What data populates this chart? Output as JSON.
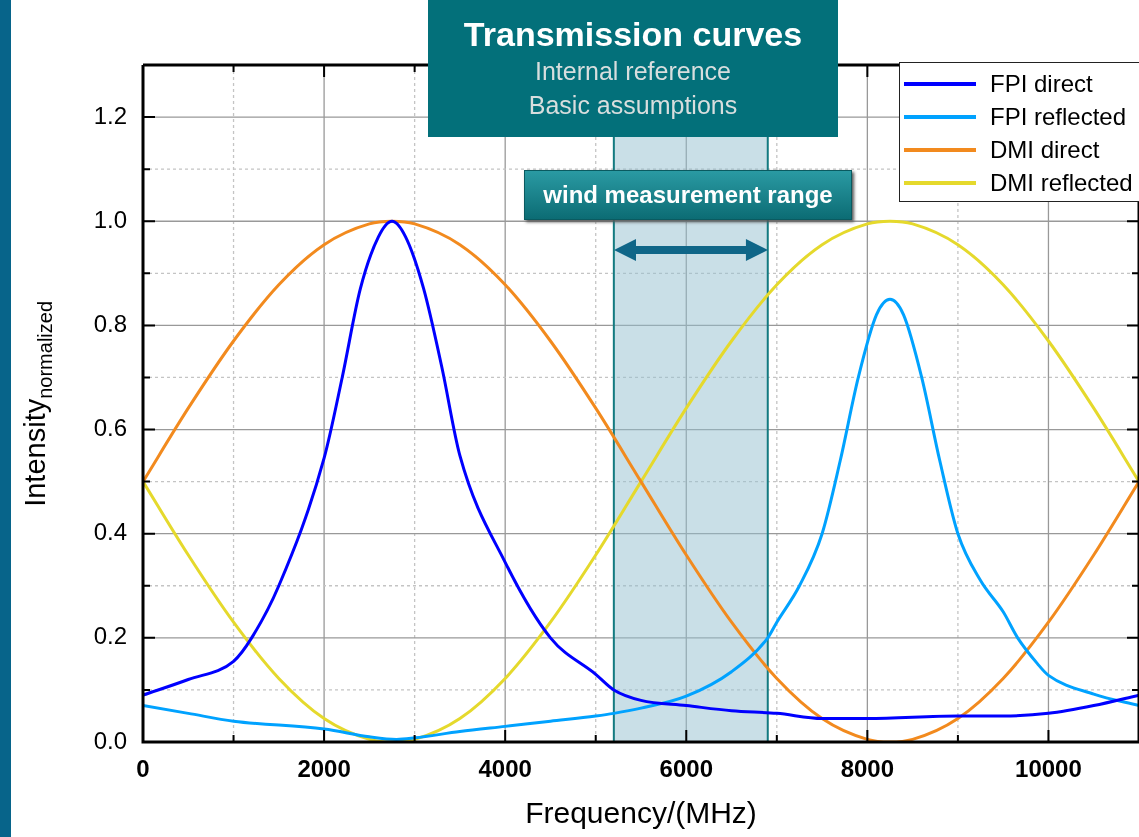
{
  "chart_data": {
    "type": "line",
    "title": "Transmission curves",
    "subtitle": "Internal reference\nBasic assumptions",
    "xlabel": "Frequency/(MHz)",
    "ylabel": "Intensity$_{normalized}$",
    "xlim": [
      0,
      11000
    ],
    "ylim": [
      0,
      1.3
    ],
    "xticks": [
      0,
      {
        "value": 1000,
        "label": null
      },
      2000,
      {
        "value": 3000,
        "label": null
      },
      4000,
      {
        "value": 5000,
        "label": null
      },
      6000,
      {
        "value": 7000,
        "label": null
      },
      8000,
      {
        "value": 9000,
        "label": null
      },
      10000
    ],
    "yticks": [
      {
        "value": 0,
        "label": "0.0"
      },
      {
        "value": 0.1,
        "label": null
      },
      {
        "value": 0.2,
        "label": "0.2"
      },
      {
        "value": 0.3,
        "label": null
      },
      {
        "value": 0.4,
        "label": "0.4"
      },
      {
        "value": 0.5,
        "label": null
      },
      {
        "value": 0.6,
        "label": "0.6"
      },
      {
        "value": 0.7,
        "label": null
      },
      {
        "value": 0.8,
        "label": "0.8"
      },
      {
        "value": 0.9,
        "label": null
      },
      {
        "value": 1.0,
        "label": "1.0"
      },
      {
        "value": 1.1,
        "label": null
      },
      {
        "value": 1.2,
        "label": "1.2"
      }
    ],
    "grid": true,
    "legend": "top right",
    "marker": "none",
    "line_style": "solid",
    "bands": [
      {
        "axis": "x",
        "from": 5200,
        "to": 6900,
        "label": "wind measurement range",
        "color": "#94bfcf"
      }
    ],
    "series": [
      {
        "name": "FPI direct",
        "color": "#0000ff",
        "x": [
          0,
          500,
          1000,
          1200,
          1500,
          2000,
          2200,
          2400,
          2600,
          2750,
          2900,
          3100,
          3300,
          3500,
          4000,
          4500,
          5000,
          5200,
          5500,
          6000,
          6500,
          7000,
          7500,
          8000,
          9000,
          9500,
          10000,
          10500,
          11000
        ],
        "values": [
          0.09,
          0.12,
          0.155,
          0.2,
          0.3,
          0.545,
          0.7,
          0.87,
          0.97,
          1.0,
          0.97,
          0.87,
          0.72,
          0.55,
          0.345,
          0.2,
          0.13,
          0.1,
          0.08,
          0.07,
          0.06,
          0.055,
          0.045,
          0.045,
          0.05,
          0.05,
          0.055,
          0.07,
          0.09
        ]
      },
      {
        "name": "FPI reflected",
        "color": "#00a2ff",
        "x": [
          0,
          500,
          1000,
          2000,
          2500,
          2800,
          3000,
          3500,
          4000,
          4500,
          5000,
          5200,
          5500,
          6000,
          6500,
          6900,
          7000,
          7250,
          7500,
          7700,
          7900,
          8100,
          8250,
          8400,
          8600,
          8800,
          9000,
          9250,
          9500,
          9660,
          9880,
          10000,
          10500,
          11000
        ],
        "values": [
          0.07,
          0.055,
          0.04,
          0.025,
          0.01,
          0.005,
          0.008,
          0.02,
          0.03,
          0.04,
          0.05,
          0.055,
          0.065,
          0.088,
          0.135,
          0.2,
          0.23,
          0.3,
          0.4,
          0.54,
          0.7,
          0.82,
          0.85,
          0.82,
          0.7,
          0.54,
          0.4,
          0.31,
          0.25,
          0.2,
          0.15,
          0.128,
          0.092,
          0.07
        ]
      },
      {
        "name": "DMI direct",
        "color": "#f28a1e",
        "x": [
          0,
          500,
          1000,
          1500,
          2000,
          2500,
          2750,
          3000,
          3500,
          4000,
          4500,
          5000,
          5500,
          6000,
          6500,
          7000,
          7500,
          8000,
          8250,
          8500,
          9000,
          9500,
          10000,
          10500,
          11000
        ],
        "values": [
          0.5,
          0.641,
          0.77,
          0.878,
          0.955,
          0.995,
          1.0,
          0.995,
          0.955,
          0.878,
          0.77,
          0.641,
          0.5,
          0.359,
          0.23,
          0.122,
          0.045,
          0.005,
          0,
          0.005,
          0.045,
          0.122,
          0.23,
          0.359,
          0.5
        ]
      },
      {
        "name": "DMI reflected",
        "color": "#e5d92c",
        "x": [
          0,
          500,
          1000,
          1500,
          2000,
          2500,
          2750,
          3000,
          3500,
          4000,
          4500,
          5000,
          5500,
          6000,
          6500,
          7000,
          7500,
          8000,
          8250,
          8500,
          9000,
          9500,
          10000,
          10500,
          11000
        ],
        "values": [
          0.5,
          0.359,
          0.23,
          0.122,
          0.045,
          0.005,
          0,
          0.005,
          0.045,
          0.122,
          0.23,
          0.359,
          0.5,
          0.641,
          0.77,
          0.878,
          0.955,
          0.995,
          1.0,
          0.995,
          0.955,
          0.878,
          0.77,
          0.641,
          0.5
        ]
      }
    ]
  }
}
